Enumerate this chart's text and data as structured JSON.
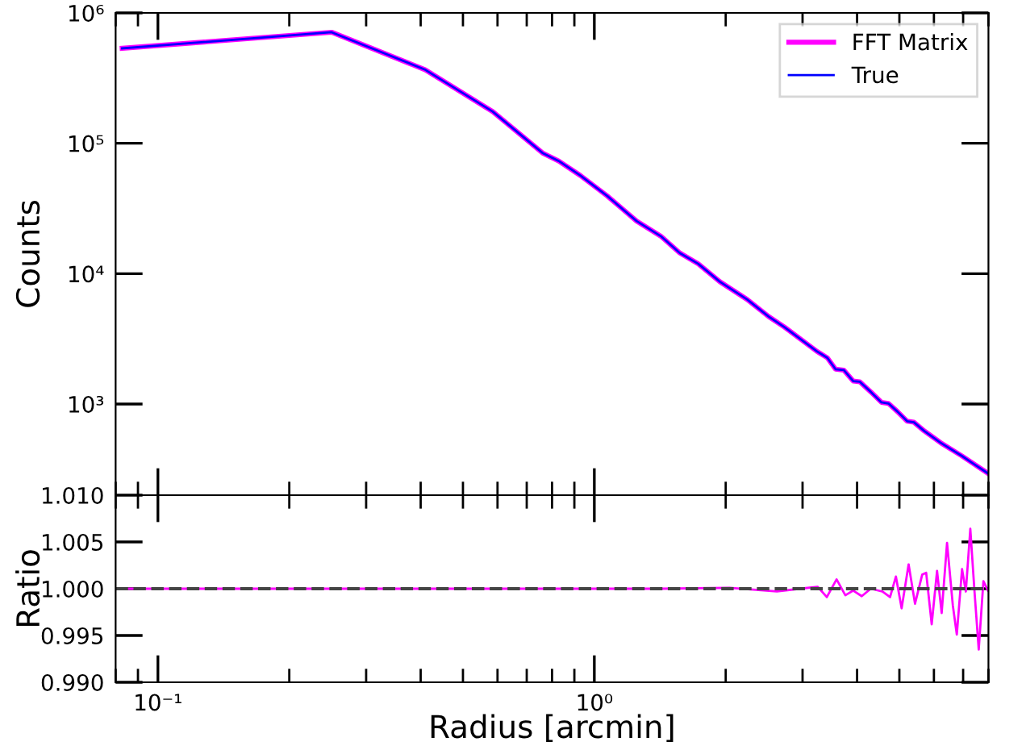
{
  "chart_data": [
    {
      "type": "line",
      "ylabel": "Counts",
      "log": "xy",
      "legend": "top right",
      "tick_labels": "y",
      "x": [
        0.0828,
        0.25,
        0.41,
        0.585,
        0.761,
        0.829,
        0.929,
        1.07,
        1.25,
        1.42,
        1.57,
        1.73,
        1.94,
        2.24,
        2.51,
        2.73,
        3.24,
        3.42,
        3.57,
        3.73,
        3.92,
        4.06,
        4.3,
        4.55,
        4.72,
        4.95,
        5.21,
        5.4,
        5.7,
        6.21,
        6.96,
        7.36,
        7.98
      ],
      "series": [
        {
          "name": "FFT Matrix",
          "color": "#ff00ff",
          "values": [
            535000,
            711000,
            366000,
            175000,
            84300,
            73100,
            56600,
            39500,
            25300,
            19400,
            14400,
            11900,
            8670,
            6340,
            4680,
            3880,
            2530,
            2260,
            1850,
            1820,
            1500,
            1480,
            1240,
            1030,
            1010,
            875,
            738,
            725,
            622,
            506,
            399,
            352,
            294
          ]
        },
        {
          "name": "True",
          "color": "#0000ff",
          "values": [
            535000,
            711000,
            366000,
            175000,
            84300,
            73100,
            56600,
            39500,
            25300,
            19400,
            14400,
            11900,
            8670,
            6340,
            4680,
            3880,
            2530,
            2260,
            1850,
            1820,
            1500,
            1480,
            1240,
            1030,
            1010,
            875,
            738,
            725,
            622,
            506,
            399,
            352,
            294
          ]
        }
      ],
      "xlim": [
        0.08,
        8
      ],
      "ylim": [
        200,
        1000000
      ],
      "yticks": [
        {
          "value": 1000,
          "label": "10³"
        },
        {
          "value": 10000,
          "label": "10⁴"
        },
        {
          "value": 100000,
          "label": "10⁵"
        },
        {
          "value": 1000000,
          "label": "10⁶"
        }
      ]
    },
    {
      "type": "line",
      "xlabel": "Radius [arcmin]",
      "ylabel": "Ratio",
      "log": "x",
      "x": [
        0.0828,
        0.25,
        0.41,
        0.585,
        0.761,
        1.07,
        1.42,
        2.04,
        2.62,
        2.96,
        3.25,
        3.41,
        3.59,
        3.76,
        3.92,
        4.1,
        4.3,
        4.57,
        4.76,
        4.91,
        5.06,
        5.25,
        5.43,
        5.64,
        5.76,
        5.93,
        6.1,
        6.25,
        6.43,
        6.63,
        6.77,
        6.96,
        7.1,
        7.27,
        7.43,
        7.6,
        7.79,
        7.98
      ],
      "series": [
        {
          "color": "#ff00ff",
          "values": [
            1.0,
            1.0,
            1.0,
            1.0,
            1.0,
            1.0,
            1.0,
            1.0001,
            0.9997,
            1.0,
            1.0002,
            0.9991,
            1.001,
            0.9993,
            0.9998,
            0.9992,
            1.0,
            0.9997,
            0.9991,
            1.0013,
            0.9979,
            1.0026,
            0.9984,
            1.0015,
            1.0017,
            0.9962,
            1.0019,
            0.9974,
            1.0049,
            0.9982,
            0.9951,
            1.0021,
            0.9997,
            1.0064,
            0.9998,
            0.9935,
            1.0008,
            0.9998
          ]
        }
      ],
      "ref_lines": [
        {
          "axis": "y",
          "value": 1.0,
          "color": "#444444",
          "line_style": "dashed"
        }
      ],
      "xlim": [
        0.08,
        8
      ],
      "ylim": [
        0.99,
        1.01
      ],
      "xticks": [
        {
          "value": 0.1,
          "label": "10⁻¹"
        },
        {
          "value": 1,
          "label": "10⁰"
        }
      ],
      "yticks": [
        {
          "value": 0.99,
          "label": "0.990"
        },
        {
          "value": 0.995,
          "label": "0.995"
        },
        {
          "value": 1.0,
          "label": "1.000"
        },
        {
          "value": 1.005,
          "label": "1.005"
        },
        {
          "value": 1.01,
          "label": "1.010"
        }
      ]
    }
  ]
}
